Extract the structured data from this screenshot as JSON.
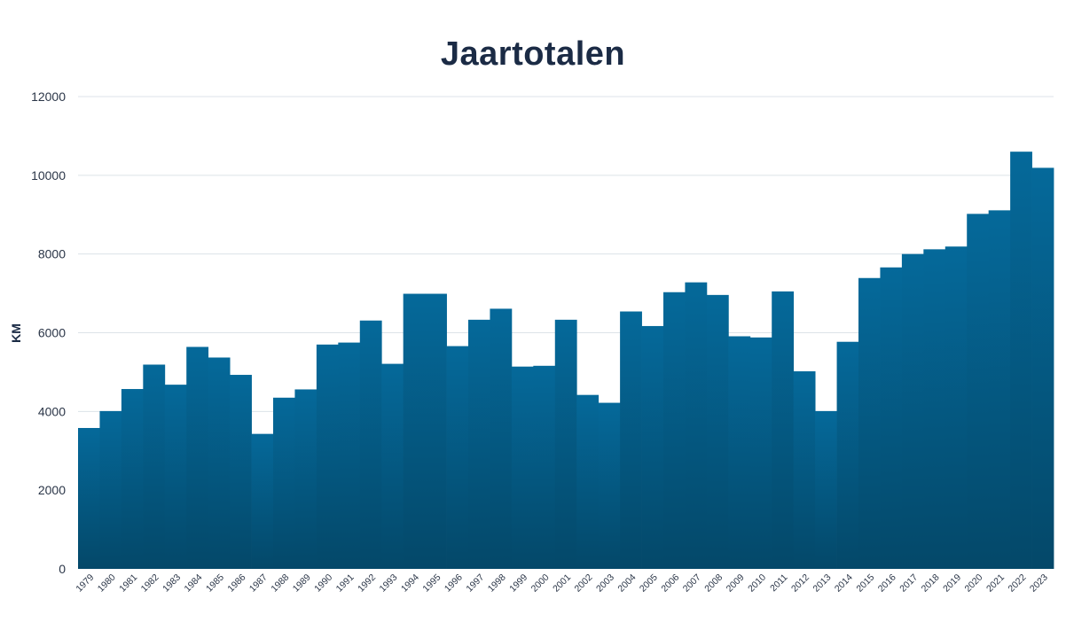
{
  "chart_data": {
    "type": "bar",
    "title": "Jaartotalen",
    "xlabel": "",
    "ylabel": "KM",
    "ylim": [
      0,
      12000
    ],
    "yticks": [
      0,
      2000,
      4000,
      6000,
      8000,
      10000,
      12000
    ],
    "grid": true,
    "legend": "none",
    "colors": {
      "bar_top": "#05699a",
      "bar_bottom": "#044869",
      "grid": "#dce3e8",
      "text": "#1b2b45"
    },
    "categories": [
      "1979",
      "1980",
      "1981",
      "1982",
      "1983",
      "1984",
      "1985",
      "1986",
      "1987",
      "1988",
      "1989",
      "1990",
      "1991",
      "1992",
      "1993",
      "1994",
      "1995",
      "1996",
      "1997",
      "1998",
      "1999",
      "2000",
      "2001",
      "2002",
      "2003",
      "2004",
      "2005",
      "2006",
      "2007",
      "2008",
      "2009",
      "2010",
      "2011",
      "2012",
      "2013",
      "2014",
      "2015",
      "2016",
      "2017",
      "2018",
      "2019",
      "2020",
      "2021",
      "2022",
      "2023"
    ],
    "values": [
      3580,
      4010,
      4570,
      5190,
      4680,
      5640,
      5370,
      4930,
      3430,
      4350,
      4560,
      5700,
      5750,
      6310,
      5210,
      6990,
      6990,
      5660,
      6330,
      6610,
      5140,
      5160,
      6330,
      4420,
      4220,
      6540,
      6170,
      7030,
      7280,
      6960,
      5910,
      5880,
      7050,
      5020,
      4010,
      5770,
      7390,
      7660,
      8000,
      8120,
      8190,
      9020,
      9110,
      10600,
      10190
    ]
  }
}
